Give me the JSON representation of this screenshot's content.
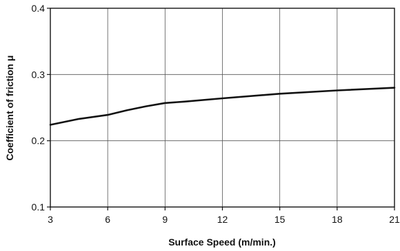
{
  "chart_data": {
    "type": "line",
    "title": "",
    "xlabel": "Surface Speed (m/min.)",
    "ylabel": "Coefficient of friction μ",
    "xlim": [
      3,
      21
    ],
    "ylim": [
      0.1,
      0.4
    ],
    "x_ticks": [
      3,
      6,
      9,
      12,
      15,
      18,
      21
    ],
    "x_tick_labels": [
      "3",
      "6",
      "9",
      "12",
      "15",
      "18",
      "21"
    ],
    "y_ticks": [
      0.1,
      0.2,
      0.3,
      0.4
    ],
    "y_tick_labels": [
      "0.1",
      "0.2",
      "0.3",
      "0.4"
    ],
    "grid": true,
    "legend": "none",
    "series": [
      {
        "x": [
          3,
          4.5,
          6,
          7,
          8,
          9,
          10,
          12,
          15,
          18,
          21
        ],
        "y": [
          0.224,
          0.233,
          0.239,
          0.246,
          0.252,
          0.257,
          0.259,
          0.264,
          0.271,
          0.276,
          0.28
        ]
      }
    ]
  }
}
